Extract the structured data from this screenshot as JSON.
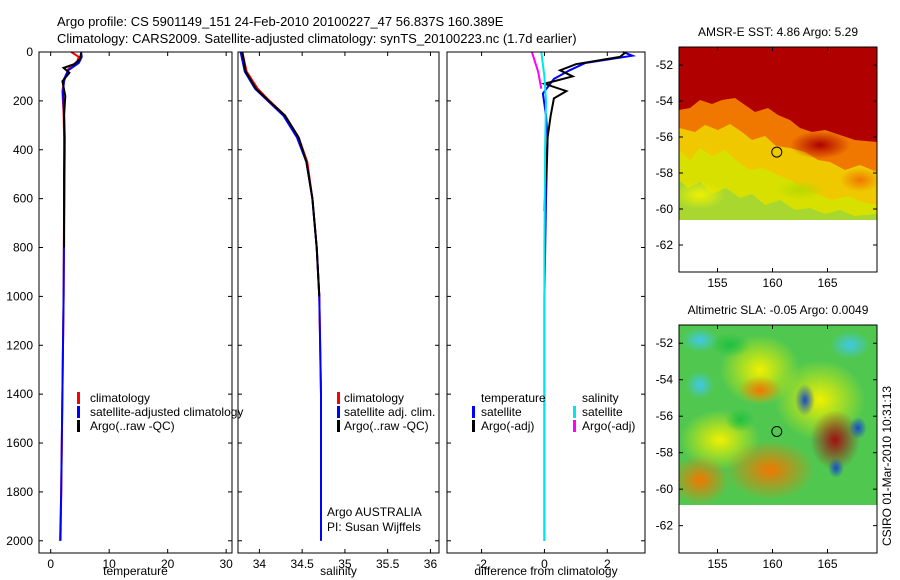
{
  "header": {
    "line1": "Argo profile: CS 5901149_151 24-Feb-2010 20100227_47 56.837S 160.389E",
    "line2": "Climatology: CARS2009. Satellite-adjusted climatology: synTS_20100223.nc (1.7d earlier)"
  },
  "side_label": "CSIRO 01-Mar-2010 10:31:13",
  "colors": {
    "climatology": "#ff0000",
    "satellite": "#0000ff",
    "argo": "#000000",
    "sal_satellite": "#00e5ee",
    "sal_argo": "#ff00ff"
  },
  "chart_data": [
    {
      "type": "line",
      "name": "temperature-panel",
      "xlabel": "temperature",
      "xlim": [
        -2,
        31
      ],
      "ylim": [
        0,
        2050
      ],
      "y_inverted": true,
      "xticks": [
        0,
        10,
        20,
        30
      ],
      "yticks": [
        0,
        200,
        400,
        600,
        800,
        1000,
        1200,
        1400,
        1600,
        1800,
        2000
      ],
      "legend": [
        "climatology",
        "satellite-adjusted climatology",
        "Argo(..raw -QC)"
      ],
      "series": [
        {
          "name": "climatology",
          "color": "climatology",
          "points": [
            [
              3.5,
              0
            ],
            [
              4.8,
              20
            ],
            [
              4.5,
              40
            ],
            [
              3.0,
              70
            ],
            [
              2.3,
              120
            ],
            [
              2.0,
              160
            ],
            [
              2.2,
              250
            ],
            [
              2.3,
              350
            ],
            [
              2.3,
              600
            ],
            [
              2.2,
              1000
            ],
            [
              2.0,
              1400
            ],
            [
              1.8,
              1800
            ],
            [
              1.7,
              2000
            ]
          ]
        },
        {
          "name": "satellite-adjusted climatology",
          "color": "satellite",
          "points": [
            [
              5.2,
              0
            ],
            [
              5.3,
              20
            ],
            [
              4.8,
              45
            ],
            [
              3.0,
              75
            ],
            [
              2.3,
              110
            ],
            [
              2.1,
              170
            ],
            [
              2.3,
              260
            ],
            [
              2.4,
              400
            ],
            [
              2.3,
              700
            ],
            [
              2.2,
              1000
            ],
            [
              2.0,
              1400
            ],
            [
              1.8,
              1800
            ],
            [
              1.6,
              2000
            ]
          ]
        },
        {
          "name": "Argo(..raw -QC)",
          "color": "argo",
          "points": [
            [
              5.2,
              5
            ],
            [
              5.0,
              30
            ],
            [
              4.0,
              50
            ],
            [
              2.2,
              65
            ],
            [
              3.2,
              85
            ],
            [
              2.0,
              120
            ],
            [
              2.5,
              180
            ],
            [
              2.3,
              260
            ],
            [
              2.4,
              350
            ],
            [
              2.3,
              500
            ],
            [
              2.3,
              800
            ]
          ]
        }
      ]
    },
    {
      "type": "line",
      "name": "salinity-panel",
      "xlabel": "salinity",
      "xlim": [
        33.75,
        36.1
      ],
      "ylim": [
        0,
        2050
      ],
      "y_inverted": true,
      "xticks": [
        34,
        34.5,
        35,
        35.5,
        36
      ],
      "yticks": [
        0,
        200,
        400,
        600,
        800,
        1000,
        1200,
        1400,
        1600,
        1800,
        2000
      ],
      "legend": [
        "climatology",
        "satellite adj. clim.",
        "Argo(..raw -QC)"
      ],
      "annotations": [
        "Argo AUSTRALIA",
        "PI: Susan Wijffels"
      ],
      "series": [
        {
          "name": "climatology",
          "color": "climatology",
          "points": [
            [
              33.8,
              0
            ],
            [
              33.85,
              80
            ],
            [
              33.98,
              150
            ],
            [
              34.12,
              200
            ],
            [
              34.3,
              260
            ],
            [
              34.46,
              350
            ],
            [
              34.56,
              450
            ],
            [
              34.62,
              600
            ],
            [
              34.67,
              800
            ],
            [
              34.7,
              1000
            ],
            [
              34.72,
              1400
            ],
            [
              34.72,
              2000
            ]
          ]
        },
        {
          "name": "satellite adj. clim.",
          "color": "satellite",
          "points": [
            [
              33.78,
              0
            ],
            [
              33.83,
              80
            ],
            [
              33.95,
              150
            ],
            [
              34.1,
              200
            ],
            [
              34.28,
              260
            ],
            [
              34.44,
              350
            ],
            [
              34.55,
              450
            ],
            [
              34.62,
              600
            ],
            [
              34.67,
              800
            ],
            [
              34.7,
              1000
            ],
            [
              34.72,
              1400
            ],
            [
              34.72,
              2000
            ]
          ]
        },
        {
          "name": "Argo(..raw -QC)",
          "color": "argo",
          "points": [
            [
              33.8,
              0
            ],
            [
              33.84,
              80
            ],
            [
              33.96,
              150
            ],
            [
              34.11,
              200
            ],
            [
              34.3,
              260
            ],
            [
              34.46,
              350
            ],
            [
              34.55,
              450
            ],
            [
              34.62,
              600
            ],
            [
              34.67,
              800
            ],
            [
              34.7,
              1000
            ]
          ]
        }
      ]
    },
    {
      "type": "line",
      "name": "difference-panel",
      "xlabel": "difference from climatology",
      "xlim": [
        -3.1,
        3.2
      ],
      "ylim": [
        0,
        2050
      ],
      "y_inverted": true,
      "xticks": [
        -2,
        0,
        2
      ],
      "yticks": [
        0,
        200,
        400,
        600,
        800,
        1000,
        1200,
        1400,
        1600,
        1800,
        2000
      ],
      "legend_left": {
        "title": "temperature",
        "items": [
          "satellite",
          "Argo(-adj)"
        ]
      },
      "legend_right": {
        "title": "salinity",
        "items": [
          "satellite",
          "Argo(-adj)"
        ]
      },
      "series": [
        {
          "name": "temperature satellite",
          "color": "satellite",
          "points": [
            [
              2.5,
              0
            ],
            [
              2.8,
              15
            ],
            [
              1.3,
              45
            ],
            [
              0.8,
              75
            ],
            [
              0.3,
              110
            ],
            [
              -0.05,
              170
            ],
            [
              0.05,
              260
            ],
            [
              0.1,
              350
            ],
            [
              0.05,
              600
            ],
            [
              0.0,
              1000
            ],
            [
              0.0,
              1400
            ],
            [
              0.0,
              2000
            ]
          ]
        },
        {
          "name": "temperature Argo(-adj)",
          "color": "argo",
          "points": [
            [
              2.6,
              0
            ],
            [
              2.4,
              20
            ],
            [
              1.0,
              50
            ],
            [
              0.5,
              75
            ],
            [
              0.9,
              100
            ],
            [
              0.0,
              130
            ],
            [
              0.7,
              160
            ],
            [
              0.3,
              190
            ],
            [
              0.2,
              260
            ],
            [
              0.1,
              350
            ],
            [
              0.05,
              500
            ],
            [
              0.0,
              650
            ]
          ]
        },
        {
          "name": "salinity satellite",
          "color": "sal_satellite",
          "points": [
            [
              -0.1,
              0
            ],
            [
              0.0,
              100
            ],
            [
              0.05,
              200
            ],
            [
              0.02,
              400
            ],
            [
              0.0,
              800
            ],
            [
              0.0,
              1200
            ],
            [
              0.0,
              2000
            ]
          ]
        },
        {
          "name": "salinity Argo(-adj)",
          "color": "sal_argo",
          "points": [
            [
              -0.4,
              0
            ],
            [
              -0.3,
              40
            ],
            [
              -0.2,
              80
            ],
            [
              -0.1,
              150
            ]
          ]
        }
      ]
    },
    {
      "type": "heatmap",
      "name": "sst-map",
      "title": "AMSR-E SST: 4.86 Argo: 5.29",
      "xlim": [
        151.5,
        169.5
      ],
      "ylim": [
        -63.5,
        -51
      ],
      "xticks": [
        155,
        160,
        165
      ],
      "yticks": [
        -62,
        -60,
        -58,
        -56,
        -54,
        -52
      ],
      "data_extent": {
        "lon": [
          151.5,
          169.5
        ],
        "lat": [
          -60,
          -51
        ]
      },
      "marker": {
        "lon": 160.389,
        "lat": -56.837
      }
    },
    {
      "type": "heatmap",
      "name": "sla-map",
      "title": "Altimetric SLA: -0.05 Argo: 0.0049",
      "xlim": [
        151.5,
        169.5
      ],
      "ylim": [
        -63.5,
        -51
      ],
      "xticks": [
        155,
        160,
        165
      ],
      "yticks": [
        -62,
        -60,
        -58,
        -56,
        -54,
        -52
      ],
      "data_extent": {
        "lon": [
          151.5,
          169.5
        ],
        "lat": [
          -60,
          -51
        ]
      },
      "marker": {
        "lon": 160.389,
        "lat": -56.837
      }
    }
  ]
}
